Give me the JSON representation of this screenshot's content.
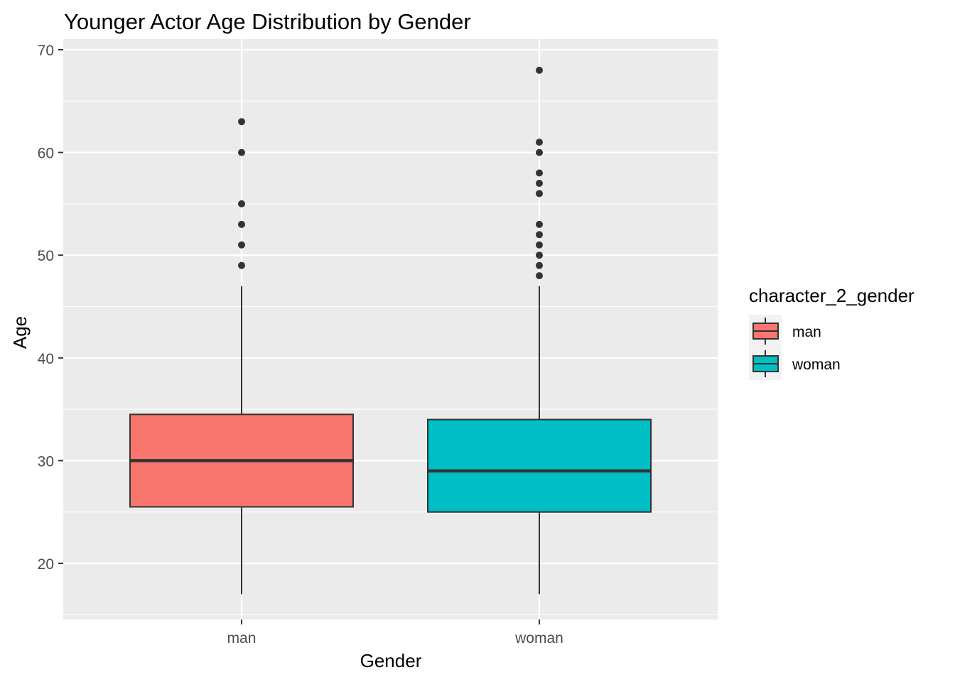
{
  "chart_data": {
    "type": "boxplot",
    "title": "Younger Actor Age Distribution by Gender",
    "xlabel": "Gender",
    "ylabel": "Age",
    "ylim": [
      15,
      70
    ],
    "y_ticks": [
      20,
      30,
      40,
      50,
      60,
      70
    ],
    "grid": true,
    "categories": [
      "man",
      "woman"
    ],
    "boxes": [
      {
        "name": "man",
        "whisker_low": 17,
        "q1": 25.5,
        "median": 30,
        "q3": 34.5,
        "whisker_high": 47,
        "outliers": [
          49,
          51,
          53,
          55,
          60,
          63
        ]
      },
      {
        "name": "woman",
        "whisker_low": 17,
        "q1": 25,
        "median": 29,
        "q3": 34,
        "whisker_high": 47,
        "outliers": [
          48,
          49,
          50,
          51,
          52,
          53,
          56,
          57,
          58,
          60,
          61,
          68
        ]
      }
    ],
    "legend": {
      "title": "character_2_gender",
      "position": "right",
      "entries": [
        {
          "label": "man",
          "color": "#F8766D"
        },
        {
          "label": "woman",
          "color": "#00BFC4"
        }
      ]
    }
  }
}
